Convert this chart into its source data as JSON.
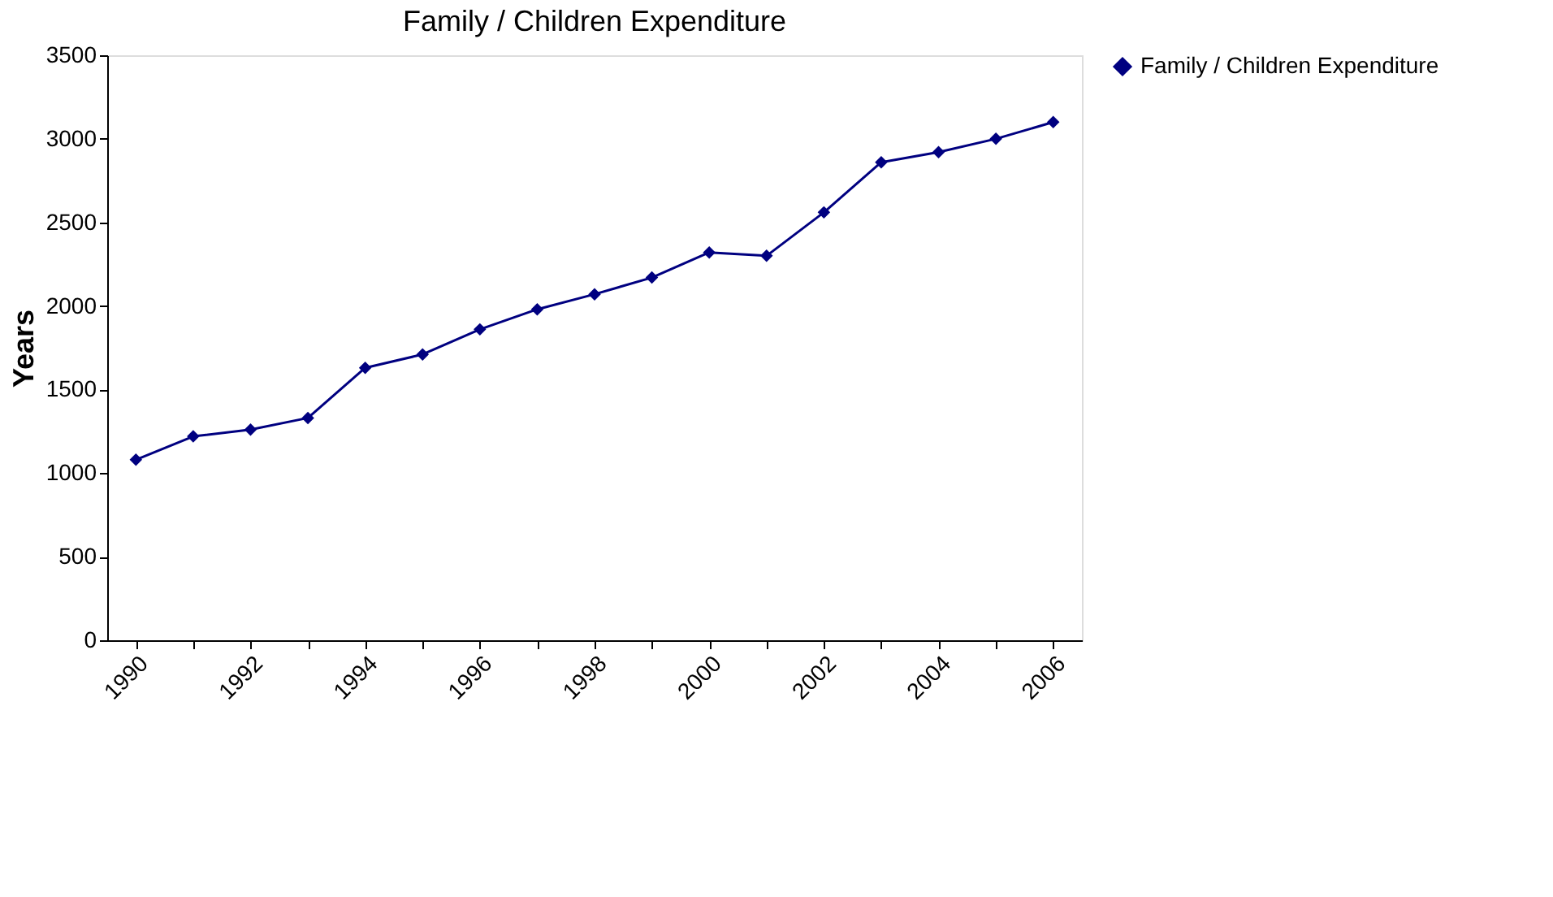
{
  "chart_data": {
    "type": "line",
    "title": "Family / Children Expenditure",
    "ylabel": "Years",
    "categories": [
      "1990",
      null,
      "1992",
      null,
      "1994",
      null,
      "1996",
      null,
      "1998",
      null,
      "2000",
      null,
      "2002",
      null,
      "2004",
      null,
      "2006"
    ],
    "series": [
      {
        "name": "Family / Children Expenditure",
        "color": "#000080",
        "values": [
          1080,
          1220,
          1260,
          1330,
          1630,
          1710,
          1860,
          1980,
          2070,
          2170,
          2320,
          2300,
          2560,
          2860,
          2920,
          3000,
          3100
        ]
      }
    ],
    "ylim": [
      0,
      3500
    ],
    "yticks": [
      0,
      500,
      1000,
      1500,
      2000,
      2500,
      3000,
      3500
    ],
    "grid": false,
    "legend": "right",
    "marker": "diamond",
    "line_style": "solid"
  }
}
